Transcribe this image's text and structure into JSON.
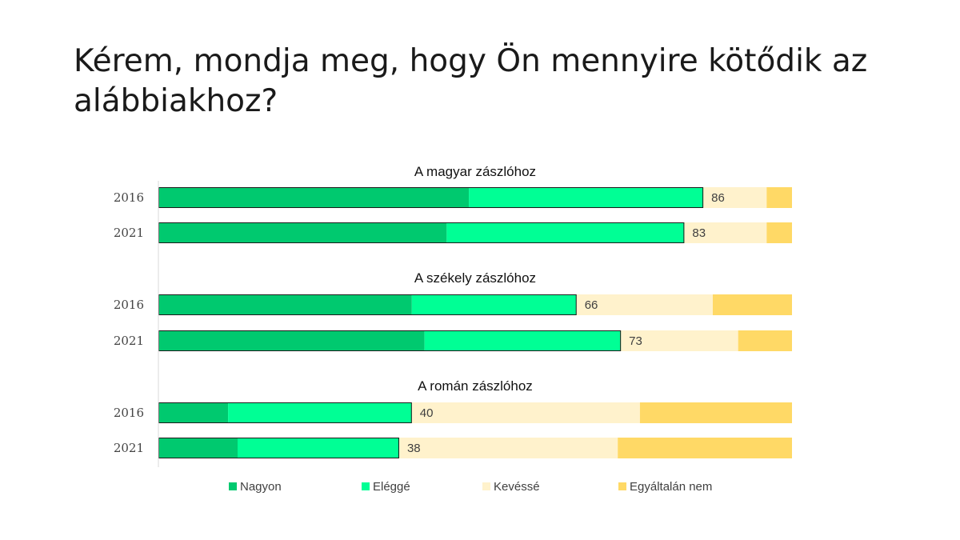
{
  "title": "Kérem, mondja meg, hogy Ön mennyire kötődik az alábbiakhoz?",
  "colors": {
    "Nagyon": "#00c96f",
    "Eléggé": "#00ff95",
    "Kevéssé": "#fff2cc",
    "Egyáltalán nem": "#ffd966"
  },
  "chart_data": {
    "type": "bar",
    "orientation": "horizontal",
    "stacked": true,
    "xlim": [
      0,
      100
    ],
    "legend_position": "bottom",
    "legend": [
      "Nagyon",
      "Eléggé",
      "Kevéssé",
      "Egyáltalán nem"
    ],
    "groups": [
      {
        "title": "A magyar zászlóhoz",
        "bars": [
          {
            "year": "2016",
            "label": "86",
            "values": {
              "Nagyon": 49,
              "Eléggé": 37,
              "Kevéssé": 10,
              "Egyáltalán nem": 4
            }
          },
          {
            "year": "2021",
            "label": "83",
            "values": {
              "Nagyon": 45.5,
              "Eléggé": 37.5,
              "Kevéssé": 13,
              "Egyáltalán nem": 4
            }
          }
        ]
      },
      {
        "title": "A székely zászlóhoz",
        "bars": [
          {
            "year": "2016",
            "label": "66",
            "values": {
              "Nagyon": 40,
              "Eléggé": 26,
              "Kevéssé": 21.5,
              "Egyáltalán nem": 12.5
            }
          },
          {
            "year": "2021",
            "label": "73",
            "values": {
              "Nagyon": 42,
              "Eléggé": 31,
              "Kevéssé": 18.5,
              "Egyáltalán nem": 8.5
            }
          }
        ]
      },
      {
        "title": "A román zászlóhoz",
        "bars": [
          {
            "year": "2016",
            "label": "40",
            "values": {
              "Nagyon": 11,
              "Eléggé": 29,
              "Kevéssé": 36,
              "Egyáltalán nem": 24
            }
          },
          {
            "year": "2021",
            "label": "38",
            "values": {
              "Nagyon": 12.5,
              "Eléggé": 25.5,
              "Kevéssé": 34.5,
              "Egyáltalán nem": 27.5
            }
          }
        ]
      }
    ]
  }
}
